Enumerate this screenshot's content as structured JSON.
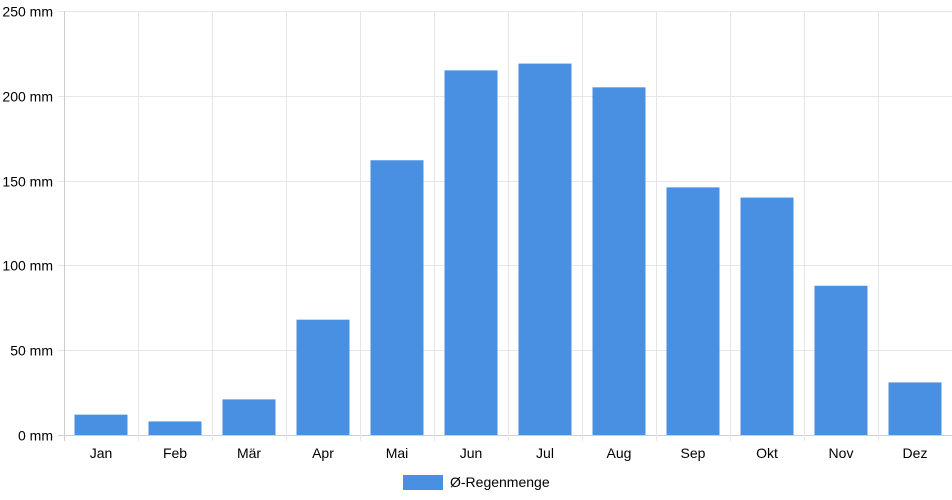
{
  "chart_data": {
    "type": "bar",
    "categories": [
      "Jan",
      "Feb",
      "Mär",
      "Apr",
      "Mai",
      "Jun",
      "Jul",
      "Aug",
      "Sep",
      "Okt",
      "Nov",
      "Dez"
    ],
    "series": [
      {
        "name": "Ø-Regenmenge",
        "values": [
          12,
          8,
          21,
          68,
          162,
          215,
          219,
          205,
          146,
          140,
          88,
          31
        ],
        "color": "#4a90e2"
      }
    ],
    "y_ticks": [
      "0 mm",
      "50 mm",
      "100 mm",
      "150 mm",
      "200 mm",
      "250 mm"
    ],
    "ylim": [
      0,
      250
    ],
    "y_unit": "mm",
    "grid": true,
    "legend_position": "bottom-center"
  }
}
